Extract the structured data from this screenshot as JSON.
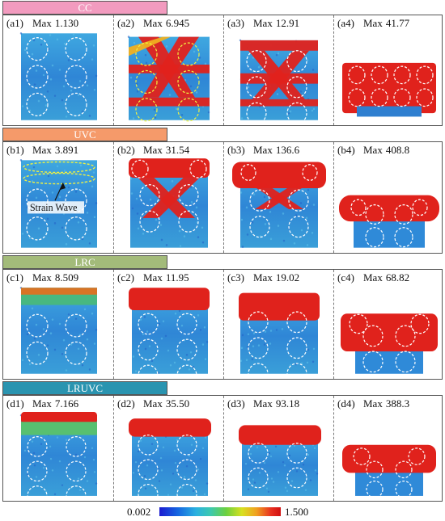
{
  "groups": [
    {
      "key": "a",
      "label": "CC",
      "color": "#f29bbf",
      "text_color": "#ffffff",
      "panels": [
        {
          "id": "(a1)",
          "max_label": "Max",
          "max": "1.130"
        },
        {
          "id": "(a2)",
          "max_label": "Max",
          "max": "6.945"
        },
        {
          "id": "(a3)",
          "max_label": "Max",
          "max": "12.91"
        },
        {
          "id": "(a4)",
          "max_label": "Max",
          "max": "41.77"
        }
      ]
    },
    {
      "key": "b",
      "label": "UVC",
      "color": "#f59a6a",
      "text_color": "#ffffff",
      "panels": [
        {
          "id": "(b1)",
          "max_label": "Max",
          "max": "3.891",
          "annotation": "Strain Wave"
        },
        {
          "id": "(b2)",
          "max_label": "Max",
          "max": "31.54"
        },
        {
          "id": "(b3)",
          "max_label": "Max",
          "max": "136.6"
        },
        {
          "id": "(b4)",
          "max_label": "Max",
          "max": "408.8"
        }
      ]
    },
    {
      "key": "c",
      "label": "LRC",
      "color": "#a3bb7a",
      "text_color": "#ffffff",
      "panels": [
        {
          "id": "(c1)",
          "max_label": "Max",
          "max": "8.509"
        },
        {
          "id": "(c2)",
          "max_label": "Max",
          "max": "11.95"
        },
        {
          "id": "(c3)",
          "max_label": "Max",
          "max": "19.02"
        },
        {
          "id": "(c4)",
          "max_label": "Max",
          "max": "68.82"
        }
      ]
    },
    {
      "key": "d",
      "label": "LRUVC",
      "color": "#2a94b0",
      "text_color": "#ffffff",
      "panels": [
        {
          "id": "(d1)",
          "max_label": "Max",
          "max": "7.166"
        },
        {
          "id": "(d2)",
          "max_label": "Max",
          "max": "35.50"
        },
        {
          "id": "(d3)",
          "max_label": "Max",
          "max": "93.18"
        },
        {
          "id": "(d4)",
          "max_label": "Max",
          "max": "388.3"
        }
      ]
    }
  ],
  "colorbar": {
    "min": "0.002",
    "max": "1.500"
  }
}
